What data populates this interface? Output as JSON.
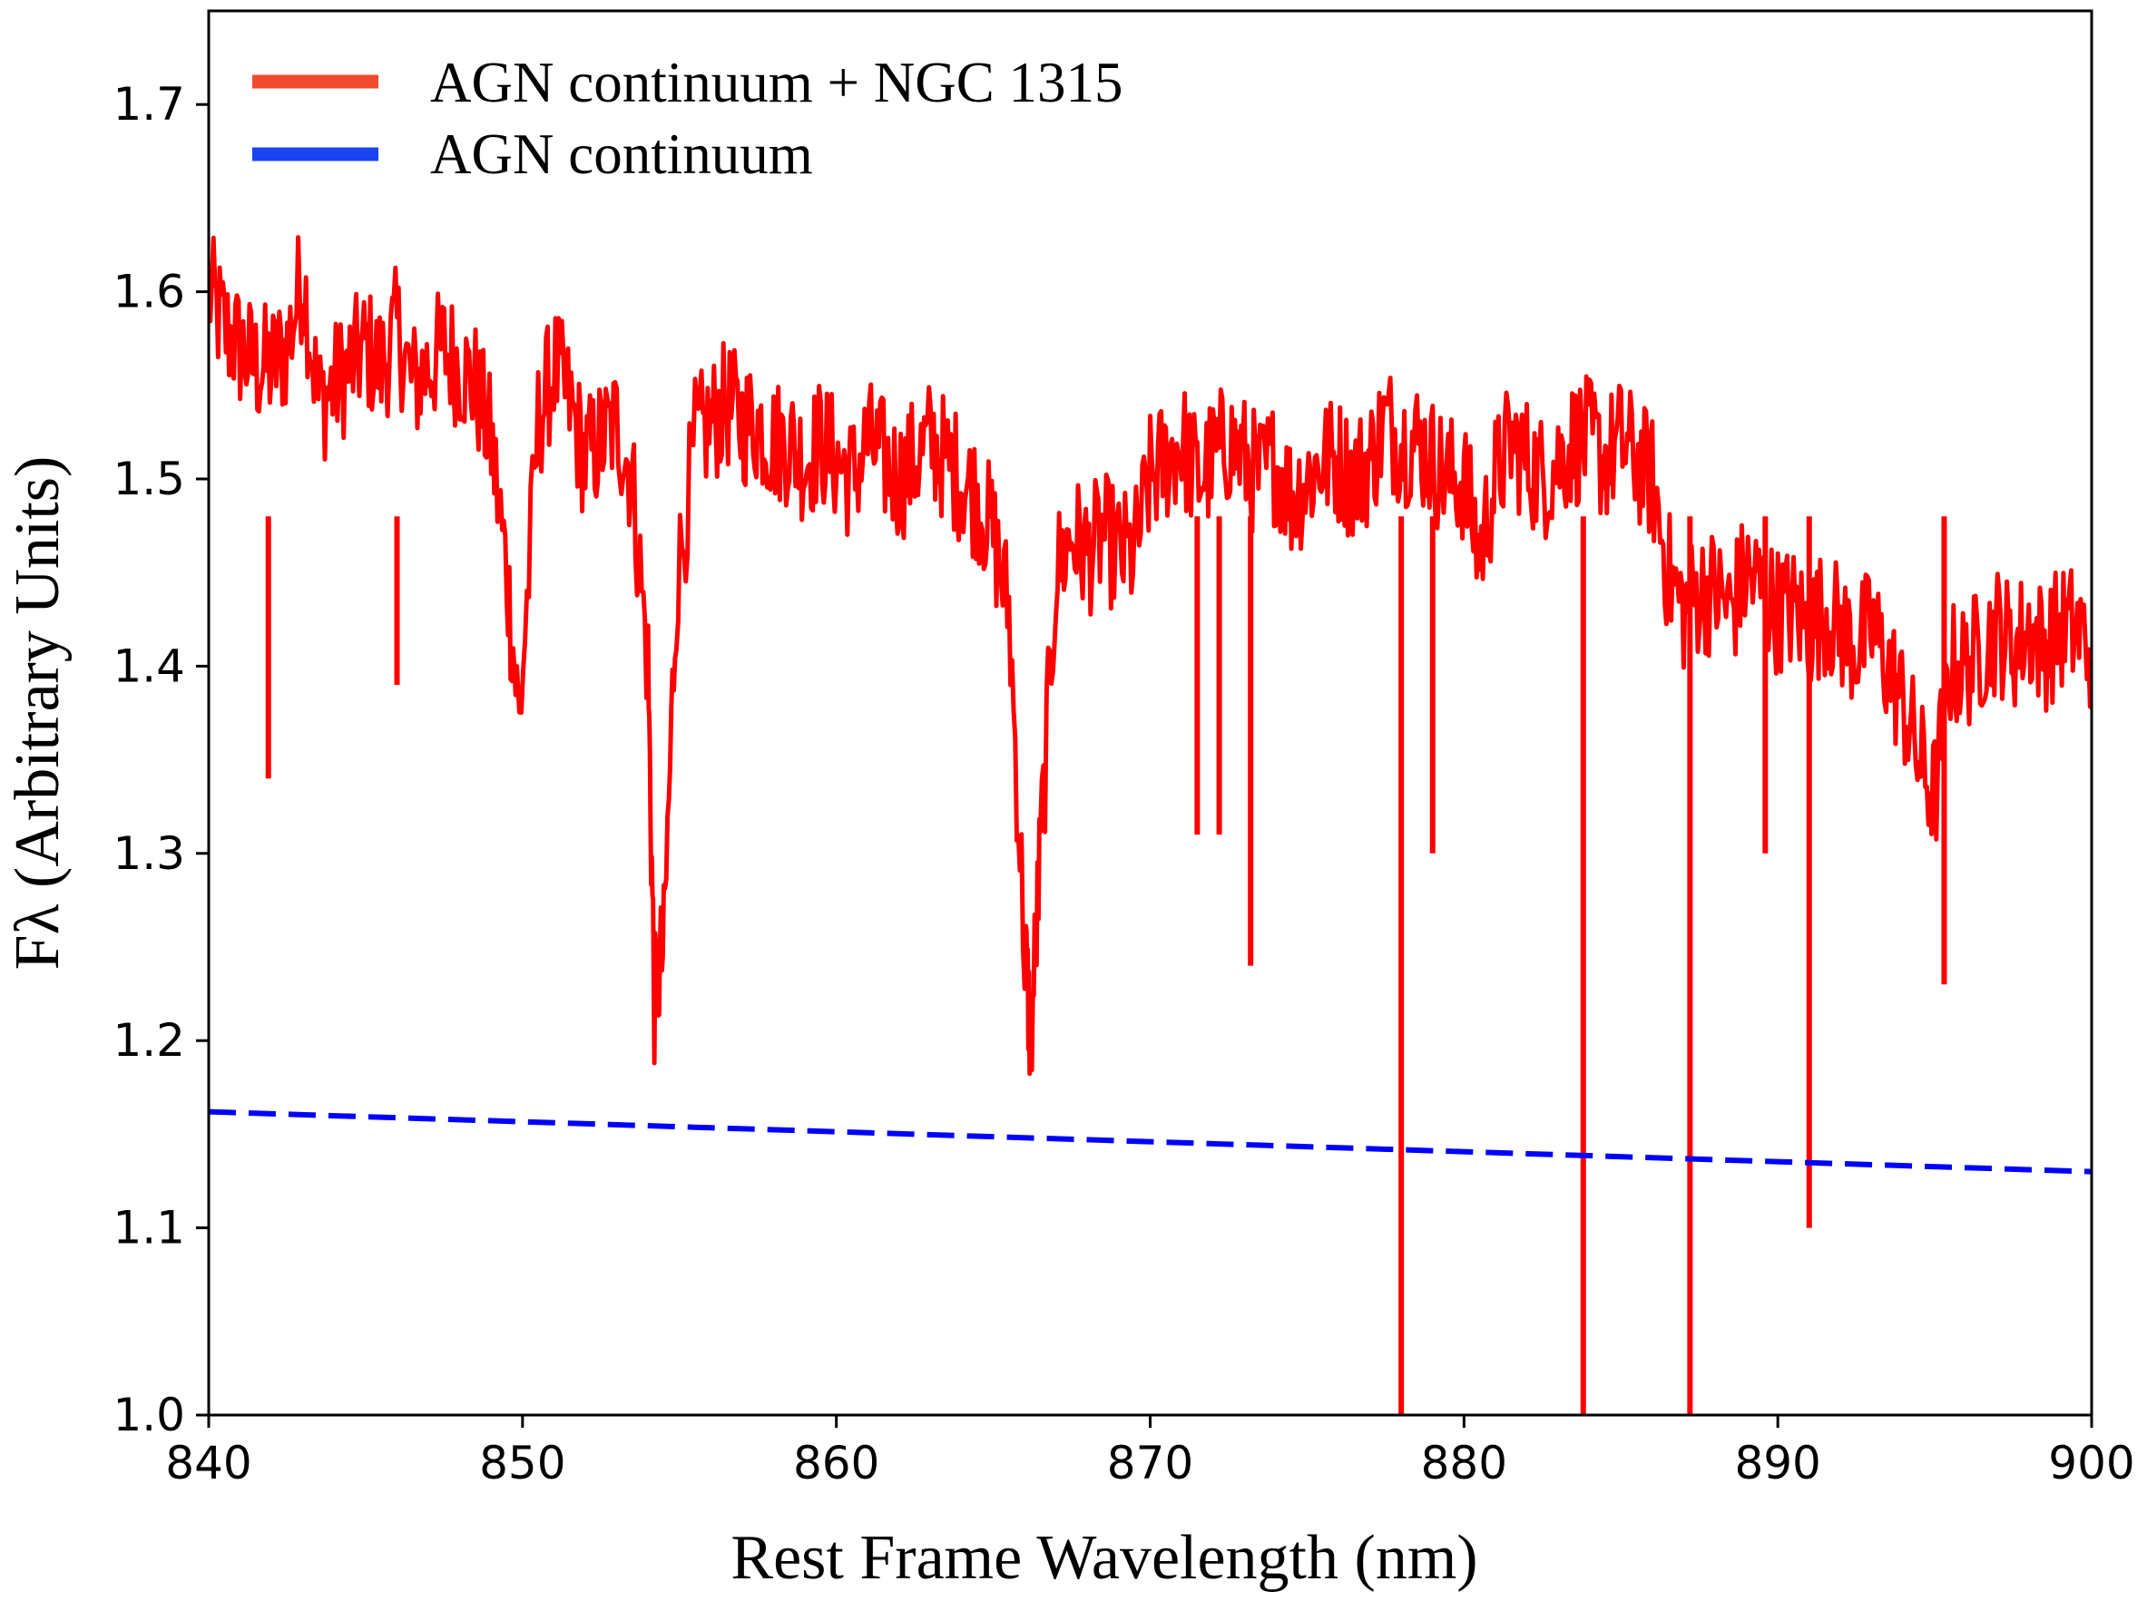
{
  "chart_data": {
    "type": "line",
    "title": "",
    "xlabel": "Rest Frame Wavelength (nm)",
    "ylabel": "Fλ (Arbitrary Units)",
    "xlim": [
      840,
      900
    ],
    "ylim": [
      1.0,
      1.75
    ],
    "xticks": [
      840,
      850,
      860,
      870,
      880,
      890,
      900
    ],
    "xtick_labels": [
      "840",
      "850",
      "860",
      "870",
      "880",
      "890",
      "900"
    ],
    "yticks": [
      1.0,
      1.1,
      1.2,
      1.3,
      1.4,
      1.5,
      1.6,
      1.7
    ],
    "ytick_labels": [
      "1.0",
      "1.1",
      "1.2",
      "1.3",
      "1.4",
      "1.5",
      "1.6",
      "1.7"
    ],
    "grid": false,
    "legend_position": "top-left",
    "legend_swatch_colors": [
      "#f04a2e",
      "#1844f2"
    ],
    "series": [
      {
        "name": "AGN continuum + NGC 1315",
        "color": "#ff0000",
        "style": "solid",
        "x": [
          840.0,
          840.5,
          841.0,
          841.5,
          842.0,
          842.5,
          843.0,
          843.5,
          844.0,
          844.5,
          845.0,
          845.5,
          846.0,
          846.5,
          847.0,
          847.5,
          848.0,
          848.5,
          849.0,
          849.5,
          849.9,
          850.5,
          851.0,
          851.5,
          852.0,
          852.5,
          853.0,
          853.5,
          854.0,
          854.2,
          854.5,
          854.9,
          855.5,
          856.0,
          856.5,
          857.0,
          857.5,
          858.0,
          858.5,
          859.0,
          859.5,
          860.0,
          860.5,
          861.0,
          861.5,
          862.0,
          862.5,
          863.0,
          863.5,
          864.0,
          864.5,
          865.0,
          865.5,
          866.0,
          866.2,
          866.5,
          867.0,
          867.5,
          868.0,
          868.5,
          869.0,
          869.5,
          870.0,
          870.5,
          871.0,
          871.5,
          872.0,
          872.5,
          873.0,
          873.5,
          874.0,
          874.5,
          875.0,
          875.5,
          876.0,
          876.5,
          877.0,
          877.5,
          878.0,
          878.5,
          879.0,
          879.5,
          880.0,
          880.5,
          881.0,
          881.5,
          882.0,
          882.5,
          883.0,
          883.5,
          884.0,
          884.5,
          885.0,
          885.5,
          886.0,
          886.5,
          887.0,
          887.5,
          888.0,
          888.5,
          889.0,
          889.5,
          890.0,
          890.5,
          891.0,
          891.5,
          892.0,
          892.5,
          893.0,
          893.5,
          894.0,
          894.5,
          895.0,
          895.5,
          896.0,
          896.5,
          897.0,
          897.5,
          898.0,
          898.5,
          899.0,
          899.5,
          900.0
        ],
        "y": [
          1.6,
          1.58,
          1.57,
          1.56,
          1.56,
          1.57,
          1.61,
          1.54,
          1.55,
          1.56,
          1.57,
          1.56,
          1.58,
          1.55,
          1.56,
          1.57,
          1.56,
          1.55,
          1.52,
          1.45,
          1.37,
          1.53,
          1.56,
          1.54,
          1.51,
          1.52,
          1.53,
          1.5,
          1.4,
          1.22,
          1.25,
          1.44,
          1.52,
          1.53,
          1.54,
          1.53,
          1.53,
          1.52,
          1.52,
          1.51,
          1.52,
          1.51,
          1.5,
          1.52,
          1.51,
          1.5,
          1.51,
          1.52,
          1.51,
          1.5,
          1.49,
          1.47,
          1.43,
          1.25,
          1.2,
          1.3,
          1.45,
          1.47,
          1.46,
          1.47,
          1.46,
          1.46,
          1.5,
          1.51,
          1.52,
          1.5,
          1.51,
          1.52,
          1.51,
          1.5,
          1.51,
          1.49,
          1.5,
          1.51,
          1.51,
          1.5,
          1.51,
          1.53,
          1.52,
          1.52,
          1.51,
          1.5,
          1.5,
          1.46,
          1.5,
          1.52,
          1.51,
          1.5,
          1.51,
          1.52,
          1.52,
          1.51,
          1.52,
          1.51,
          1.5,
          1.45,
          1.43,
          1.44,
          1.44,
          1.43,
          1.45,
          1.44,
          1.43,
          1.43,
          1.42,
          1.43,
          1.42,
          1.41,
          1.42,
          1.4,
          1.38,
          1.35,
          1.33,
          1.4,
          1.4,
          1.41,
          1.42,
          1.41,
          1.42,
          1.41,
          1.42,
          1.42,
          1.41
        ],
        "absorption_spikes": [
          {
            "x": 841.9,
            "y": 1.34
          },
          {
            "x": 846.0,
            "y": 1.39
          },
          {
            "x": 871.5,
            "y": 1.31
          },
          {
            "x": 872.2,
            "y": 1.31
          },
          {
            "x": 873.2,
            "y": 1.24
          },
          {
            "x": 878.0,
            "y": 1.0
          },
          {
            "x": 879.0,
            "y": 1.3
          },
          {
            "x": 883.8,
            "y": 1.0
          },
          {
            "x": 887.2,
            "y": 1.0
          },
          {
            "x": 889.6,
            "y": 1.3
          },
          {
            "x": 891.0,
            "y": 1.1
          },
          {
            "x": 895.3,
            "y": 1.23
          }
        ]
      },
      {
        "name": "AGN continuum",
        "color": "#0000ff",
        "style": "dashed",
        "x": [
          840,
          900
        ],
        "y": [
          1.162,
          1.13
        ]
      }
    ]
  }
}
